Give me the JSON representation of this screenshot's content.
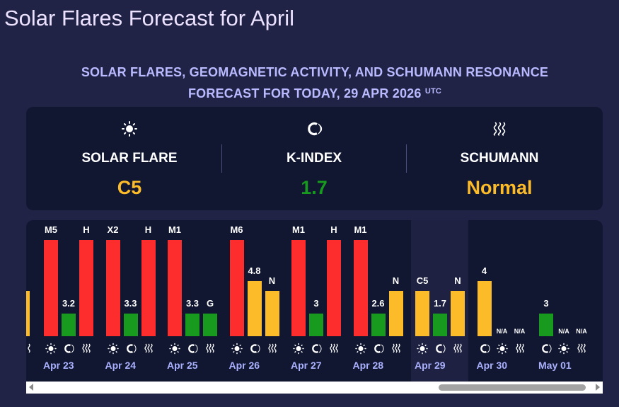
{
  "page_title": "Solar Flares Forecast for April",
  "subtitle": {
    "line1": "SOLAR FLARES, GEOMAGNETIC ACTIVITY, AND SCHUMANN RESONANCE",
    "line2": "FORECAST FOR TODAY, 29 APR 2026",
    "tz": "UTC"
  },
  "colors": {
    "red": "#fd2d2d",
    "green": "#179a1e",
    "yellow": "#fcbb28",
    "label": "#aab2ff"
  },
  "summary": {
    "solar_flare": {
      "label": "SOLAR FLARE",
      "value": "C5",
      "icon": "sun-icon",
      "color": "#fcbb28"
    },
    "k_index": {
      "label": "K-INDEX",
      "value": "1.7",
      "icon": "magnet-icon",
      "color": "#179a1e"
    },
    "schumann": {
      "label": "SCHUMANN",
      "value": "Normal",
      "icon": "wave-icon",
      "color": "#fcbb28"
    }
  },
  "chart_data": {
    "type": "bar",
    "categories": [
      "Apr 23",
      "Apr 24",
      "Apr 25",
      "Apr 26",
      "Apr 27",
      "Apr 28",
      "Apr 29",
      "Apr 30",
      "May 01"
    ],
    "series": [
      {
        "values": [
          "M5",
          "X2",
          "M1",
          "M6",
          "M1",
          "M1",
          "C5",
          "N/A",
          "N/A"
        ]
      },
      {
        "values": [
          3.2,
          3.3,
          3.3,
          4.8,
          3,
          2.6,
          1.7,
          4,
          3
        ]
      },
      {
        "values": [
          "H",
          "H",
          "G",
          "N",
          "H",
          "N",
          "N",
          "N/A",
          "N/A"
        ]
      }
    ],
    "highlighted": "Apr 29"
  }
}
